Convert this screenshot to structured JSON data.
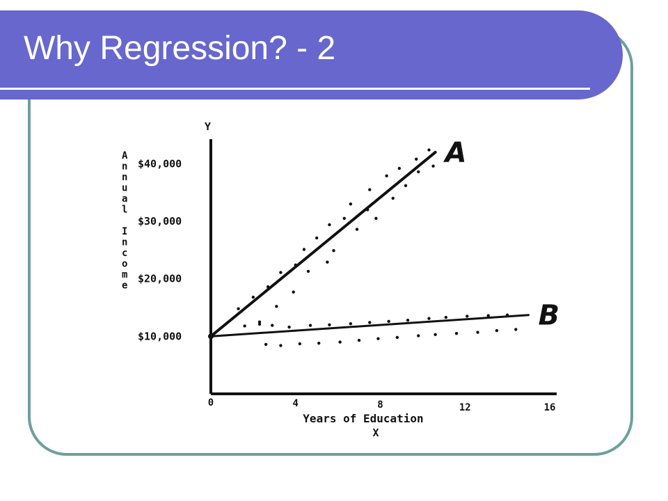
{
  "title": "Why Regression? - 2",
  "chart_data": {
    "type": "scatter",
    "xlabel": "Years of Education",
    "xaxis_letter": "X",
    "yaxis_letter": "Y",
    "ylabel_vertical": "Annual Income",
    "x_ticks": [
      "0",
      "4",
      "8",
      "12",
      "16"
    ],
    "y_ticks": [
      "$10,000",
      "$20,000",
      "$30,000",
      "$40,000"
    ],
    "xlim": [
      0,
      16
    ],
    "ylim": [
      0,
      45000
    ],
    "grid": false,
    "colors": {
      "ink": "#111111",
      "accent": "#6767cd",
      "frame": "#6f9fa0"
    },
    "series": [
      {
        "name": "A",
        "line": {
          "x": [
            0,
            10.6
          ],
          "y": [
            10000,
            42000
          ]
        },
        "points": [
          [
            1.3,
            14800
          ],
          [
            1.6,
            11800
          ],
          [
            2.0,
            16800
          ],
          [
            2.3,
            12500
          ],
          [
            2.7,
            18600
          ],
          [
            3.1,
            15200
          ],
          [
            3.3,
            21100
          ],
          [
            3.9,
            17700
          ],
          [
            4.0,
            22400
          ],
          [
            4.4,
            25100
          ],
          [
            4.6,
            21300
          ],
          [
            5.0,
            27100
          ],
          [
            5.5,
            22900
          ],
          [
            5.6,
            29400
          ],
          [
            5.8,
            24900
          ],
          [
            6.3,
            30500
          ],
          [
            6.6,
            33000
          ],
          [
            6.9,
            28600
          ],
          [
            7.4,
            32000
          ],
          [
            7.5,
            35500
          ],
          [
            7.8,
            30500
          ],
          [
            8.3,
            37900
          ],
          [
            8.6,
            34000
          ],
          [
            8.9,
            39200
          ],
          [
            9.2,
            36200
          ],
          [
            9.7,
            40800
          ],
          [
            9.8,
            38600
          ],
          [
            10.3,
            42400
          ],
          [
            10.5,
            39600
          ]
        ]
      },
      {
        "name": "B",
        "line": {
          "x": [
            0,
            15.0
          ],
          "y": [
            10000,
            13700
          ]
        },
        "points": [
          [
            2.3,
            12100
          ],
          [
            2.6,
            8600
          ],
          [
            2.9,
            11900
          ],
          [
            3.3,
            8400
          ],
          [
            3.7,
            11600
          ],
          [
            4.2,
            8700
          ],
          [
            4.7,
            11900
          ],
          [
            5.1,
            8800
          ],
          [
            5.6,
            12000
          ],
          [
            6.1,
            9000
          ],
          [
            6.6,
            12200
          ],
          [
            7.0,
            9300
          ],
          [
            7.5,
            12400
          ],
          [
            7.9,
            9600
          ],
          [
            8.4,
            12600
          ],
          [
            8.8,
            9800
          ],
          [
            9.3,
            12800
          ],
          [
            9.8,
            10100
          ],
          [
            10.3,
            13100
          ],
          [
            10.6,
            10300
          ],
          [
            11.1,
            13300
          ],
          [
            11.6,
            10500
          ],
          [
            12.1,
            13500
          ],
          [
            12.6,
            10700
          ],
          [
            13.1,
            13600
          ],
          [
            13.5,
            11000
          ],
          [
            14.0,
            13700
          ],
          [
            14.4,
            11200
          ]
        ]
      }
    ]
  }
}
